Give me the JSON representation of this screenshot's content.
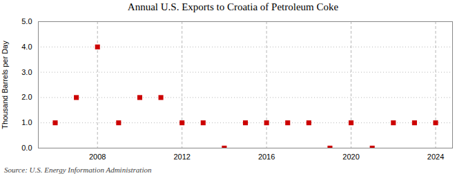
{
  "chart_data": {
    "type": "scatter",
    "title": "Annual U.S. Exports to Croatia of Petroleum Coke",
    "ylabel": "Thousand Barrels per Day",
    "source": "Source: U.S. Energy Information Administration",
    "x": [
      2006,
      2007,
      2008,
      2009,
      2010,
      2011,
      2012,
      2013,
      2014,
      2015,
      2016,
      2017,
      2018,
      2019,
      2020,
      2021,
      2022,
      2023,
      2024
    ],
    "values": [
      1,
      2,
      4,
      1,
      2,
      2,
      1,
      1,
      0,
      1,
      1,
      1,
      1,
      0,
      1,
      0,
      1,
      1,
      1
    ],
    "color": "#cc0000",
    "marker": "square",
    "xlim": [
      2005.2,
      2024.8
    ],
    "xticks": [
      2008,
      2012,
      2016,
      2020,
      2024
    ],
    "ylim": [
      0,
      5.0
    ],
    "yticks": [
      {
        "value": 0,
        "label": "0.0"
      },
      {
        "value": 1,
        "label": "1.0"
      },
      {
        "value": 2,
        "label": "2.0"
      },
      {
        "value": 3,
        "label": "3.0"
      },
      {
        "value": 4,
        "label": "4.0"
      },
      {
        "value": 5,
        "label": "5.0"
      }
    ],
    "grid": true
  }
}
